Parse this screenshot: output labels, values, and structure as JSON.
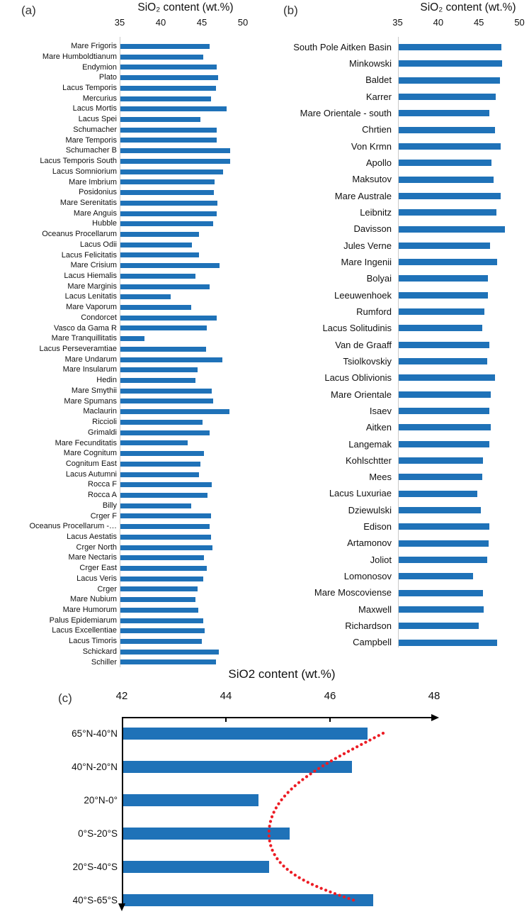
{
  "panels": {
    "a": {
      "tag": "(a)",
      "title": "SiO₂ content  (wt.%)"
    },
    "b": {
      "tag": "(b)",
      "title": "SiO₂ content  (wt.%)"
    },
    "c": {
      "tag": "(c)",
      "title": "SiO2 content (wt.%)"
    }
  },
  "colors": {
    "bar_blue": "#1f72b8",
    "curve_red": "#ec1c24",
    "axis_gray": "#c9c9c9",
    "axis_black": "#000000"
  },
  "chart_data": [
    {
      "id": "a",
      "type": "bar",
      "orientation": "horizontal",
      "title": "SiO₂ content  (wt.%)",
      "xlabel": "SiO₂ content (wt.%)",
      "xlim": [
        35,
        50
      ],
      "ticks": [
        35,
        40,
        45,
        50
      ],
      "grid": false,
      "legend": "none",
      "categories": [
        "Mare Frigoris",
        "Mare Humboldtianum",
        "Endymion",
        "Plato",
        "Lacus Temporis",
        "Mercurius",
        "Lacus Mortis",
        "Lacus Spei",
        "Schumacher",
        "Mare Temporis",
        "Schumacher B",
        "Lacus Temporis South",
        "Lacus Somniorium",
        "Mare Imbrium",
        "Posidonius",
        "Mare Serenitatis",
        "Mare Anguis",
        "Hubble",
        "Oceanus Procellarum",
        "Lacus Odii",
        "Lacus Felicitatis",
        "Mare Crisium",
        "Lacus Hiemalis",
        "Mare Marginis",
        "Lacus Lenitatis",
        "Mare Vaporum",
        "Condorcet",
        "Vasco da Gama R",
        "Mare Tranquillitatis",
        "Lacus Perseveramtiae",
        "Mare Undarum",
        "Mare Insularum",
        "Hedin",
        "Mare Smythii",
        "Mare Spumans",
        "Maclaurin",
        "Riccioli",
        "Grimaldi",
        "Mare Fecunditatis",
        "Mare Cognitum",
        "Cognitum East",
        "Lacus Autumni",
        "Rocca F",
        "Rocca A",
        "Billy",
        "Crger F",
        "Oceanus Procellarum -…",
        "Lacus Aestatis",
        "Crger North",
        "Mare Nectaris",
        "Crger East",
        "Lacus Veris",
        "Crger",
        "Mare Nubium",
        "Mare Humorum",
        "Palus Epidemiarum",
        "Lacus Excellentiae",
        "Lacus Timoris",
        "Schickard",
        "Schiller"
      ],
      "values": [
        45.9,
        45.1,
        46.7,
        46.9,
        46.6,
        46.0,
        47.9,
        44.7,
        46.7,
        46.7,
        48.4,
        48.4,
        47.5,
        46.5,
        46.4,
        46.8,
        46.7,
        46.3,
        44.6,
        43.7,
        44.6,
        47.1,
        44.1,
        45.9,
        41.1,
        43.6,
        46.7,
        45.5,
        37.9,
        45.4,
        47.4,
        44.4,
        44.1,
        46.1,
        46.3,
        48.3,
        45.0,
        45.9,
        43.2,
        45.2,
        44.7,
        44.6,
        46.1,
        45.6,
        43.6,
        46.0,
        45.9,
        46.0,
        46.2,
        45.2,
        45.5,
        45.1,
        44.4,
        44.1,
        44.5,
        45.1,
        45.3,
        44.9,
        47.0,
        46.6
      ]
    },
    {
      "id": "b",
      "type": "bar",
      "orientation": "horizontal",
      "title": "SiO₂ content  (wt.%)",
      "xlabel": "SiO₂ content (wt.%)",
      "xlim": [
        35,
        50
      ],
      "ticks": [
        35,
        40,
        45,
        50
      ],
      "grid": false,
      "legend": "none",
      "categories": [
        "South Pole Aitken Basin",
        "Minkowski",
        "Baldet",
        "Karrer",
        "Mare Orientale - south",
        "Chrtien",
        "Von Krmn",
        "Apollo",
        "Maksutov",
        "Mare Australe",
        "Leibnitz",
        "Davisson",
        "Jules Verne",
        "Mare Ingenii",
        "Bolyai",
        "Leeuwenhoek",
        "Rumford",
        "Lacus Solitudinis",
        "Van de Graaff",
        "Tsiolkovskiy",
        "Lacus Oblivionis",
        "Mare Orientale",
        "Isaev",
        "Aitken",
        "Langemak",
        "Kohlschtter",
        "Mees",
        "Lacus Luxuriae",
        "Dziewulski",
        "Edison",
        "Artamonov",
        "Joliot",
        "Lomonosov",
        "Mare Moscoviense",
        "Maxwell",
        "Richardson",
        "Campbell"
      ],
      "values": [
        47.7,
        47.8,
        47.5,
        47.0,
        46.2,
        46.9,
        47.6,
        46.5,
        46.7,
        47.6,
        47.1,
        48.1,
        46.3,
        47.2,
        46.0,
        46.0,
        45.6,
        45.3,
        46.2,
        45.9,
        46.9,
        46.4,
        46.2,
        46.4,
        46.2,
        45.4,
        45.3,
        44.7,
        45.2,
        46.2,
        46.1,
        45.9,
        44.2,
        45.4,
        45.5,
        44.9,
        47.2
      ]
    },
    {
      "id": "c",
      "type": "bar",
      "orientation": "horizontal",
      "title": "SiO2 content (wt.%)",
      "xlabel": "SiO2 content (wt.%)",
      "xlim": [
        42,
        48
      ],
      "ticks": [
        42,
        44,
        46,
        48
      ],
      "grid": false,
      "legend": "none",
      "categories": [
        "65°N-40°N",
        "40°N-20°N",
        "20°N-0°",
        "0°S-20°S",
        "20°S-40°S",
        "40°S-65°S"
      ],
      "values": [
        46.7,
        46.4,
        44.6,
        45.2,
        44.8,
        46.8
      ],
      "annotation": "red dotted latitudinal trend curve bowing left toward the equator"
    }
  ]
}
